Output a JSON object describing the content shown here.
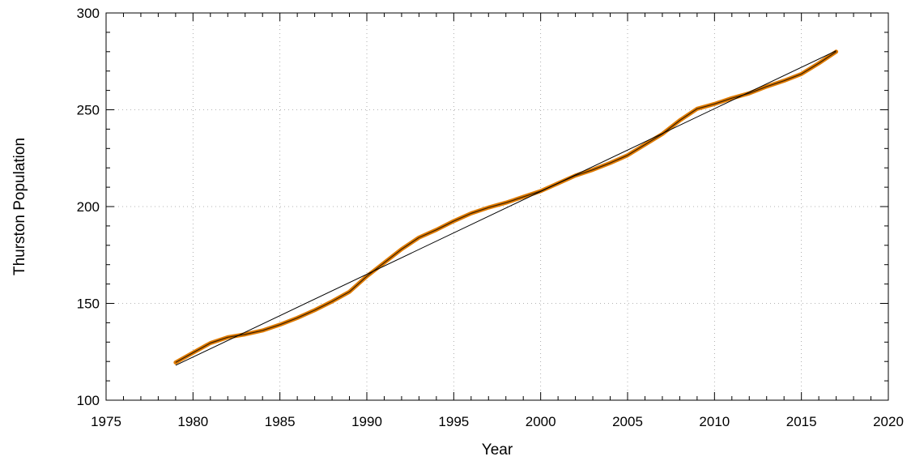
{
  "chart_data": {
    "type": "line",
    "title": "",
    "xlabel": "Year",
    "ylabel": "Thurston Population",
    "xlim": [
      1975,
      2020
    ],
    "ylim": [
      100,
      300
    ],
    "x_ticks": [
      1975,
      1980,
      1985,
      1990,
      1995,
      2000,
      2005,
      2010,
      2015,
      2020
    ],
    "y_ticks": [
      100,
      150,
      200,
      250,
      300
    ],
    "grid": true,
    "legend": "none",
    "series": [
      {
        "kind": "data",
        "color": "#e07b00",
        "x": [
          1979,
          1980,
          1981,
          1982,
          1983,
          1984,
          1985,
          1986,
          1987,
          1988,
          1989,
          1990,
          1991,
          1992,
          1993,
          1994,
          1995,
          1996,
          1997,
          1998,
          1999,
          2000,
          2001,
          2002,
          2003,
          2004,
          2005,
          2006,
          2007,
          2008,
          2009,
          2010,
          2011,
          2012,
          2013,
          2014,
          2015,
          2016,
          2017
        ],
        "y": [
          119.5,
          124.5,
          129.5,
          132.5,
          134,
          136,
          139,
          142.5,
          146.5,
          151,
          156,
          164,
          171,
          178,
          184,
          188,
          192.5,
          196.5,
          199.5,
          202,
          205,
          208,
          212,
          216,
          219,
          222.5,
          226.5,
          232,
          237.5,
          244.5,
          250.5,
          253,
          256,
          258.5,
          262,
          265,
          268.5,
          274,
          280
        ]
      },
      {
        "kind": "fit",
        "color": "#000000",
        "x": [
          1979,
          2017
        ],
        "y": [
          118,
          280.5
        ]
      }
    ]
  }
}
